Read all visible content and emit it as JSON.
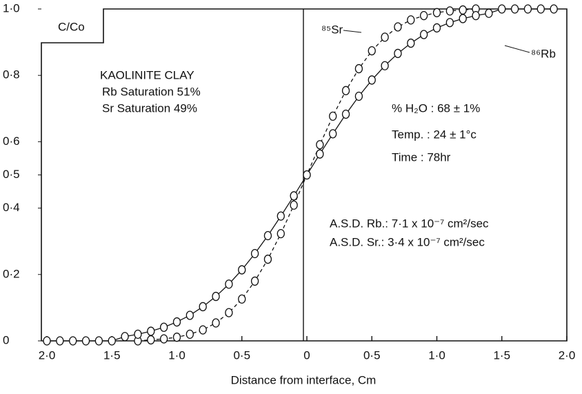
{
  "chart_data": {
    "type": "line",
    "ylabel": "C/Co",
    "xlabel": "Distance from  interface, Cm",
    "xlim": [
      -2,
      2
    ],
    "ylim": [
      0,
      1
    ],
    "xticks": [
      {
        "value": -2,
        "label": "2·0"
      },
      {
        "value": -1.5,
        "label": "1·5"
      },
      {
        "value": -1,
        "label": "1·0"
      },
      {
        "value": -0.5,
        "label": "0·5"
      },
      0,
      {
        "value": 0.5,
        "label": "0·5"
      },
      {
        "value": 1,
        "label": "1·0"
      },
      {
        "value": 1.5,
        "label": "1·5"
      },
      {
        "value": 2,
        "label": "2·0"
      }
    ],
    "yticks": [
      0,
      {
        "value": 0.2,
        "label": "0·2"
      },
      {
        "value": 0.4,
        "label": "0·4"
      },
      {
        "value": 0.5,
        "label": "0·5"
      },
      {
        "value": 0.6,
        "label": "0·6"
      },
      {
        "value": 0.8,
        "label": "0·8"
      },
      {
        "value": 1,
        "label": "1·0"
      }
    ],
    "annotations": [
      "KAOLINITE CLAY",
      "Rb Saturation  51%",
      "Sr Saturation  49%",
      "% H₂O :  68 ± 1%",
      "Temp.  : 24 ± 1°c",
      "Time   :  78hr",
      "A.S.D.  Rb.:  7·1 x 10⁻⁷ cm²/sec",
      "A.S.D.  Sr.:  3·4 x 10⁻⁷ cm²/sec"
    ],
    "series": [
      {
        "name": "⁸⁵Sr",
        "color": "#111111",
        "dashed": true,
        "x": [
          -1.3,
          -1.2,
          -1.1,
          -1.0,
          -0.9,
          -0.8,
          -0.7,
          -0.6,
          -0.5,
          -0.4,
          -0.3,
          -0.2,
          -0.1,
          0,
          0.1,
          0.2,
          0.3,
          0.4,
          0.5,
          0.6,
          0.7,
          0.8,
          0.9,
          1.0,
          1.1,
          1.2,
          1.3
        ],
        "values": [
          0,
          0.003,
          0.006,
          0.011,
          0.02,
          0.033,
          0.054,
          0.085,
          0.126,
          0.18,
          0.246,
          0.323,
          0.409,
          0.5,
          0.591,
          0.677,
          0.754,
          0.82,
          0.874,
          0.915,
          0.946,
          0.967,
          0.98,
          0.989,
          0.994,
          0.997,
          1
        ]
      },
      {
        "name": "⁸⁶Rb",
        "color": "#111111",
        "dashed": false,
        "x": [
          -2.0,
          -1.9,
          -1.8,
          -1.7,
          -1.6,
          -1.5,
          -1.4,
          -1.3,
          -1.2,
          -1.1,
          -1.0,
          -0.9,
          -0.8,
          -0.7,
          -0.6,
          -0.5,
          -0.4,
          -0.3,
          -0.2,
          -0.1,
          0,
          0.1,
          0.2,
          0.3,
          0.4,
          0.5,
          0.6,
          0.7,
          0.8,
          0.9,
          1.0,
          1.1,
          1.2,
          1.3,
          1.4,
          1.5,
          1.6,
          1.7,
          1.8,
          1.9
        ],
        "values": [
          0,
          0,
          0,
          0,
          0,
          0,
          0.013,
          0.02,
          0.029,
          0.041,
          0.057,
          0.077,
          0.103,
          0.134,
          0.171,
          0.214,
          0.263,
          0.317,
          0.376,
          0.437,
          0.5,
          0.563,
          0.624,
          0.683,
          0.737,
          0.786,
          0.829,
          0.866,
          0.897,
          0.923,
          0.943,
          0.959,
          0.971,
          0.98,
          0.987,
          1,
          1,
          1,
          1,
          1
        ]
      }
    ]
  }
}
